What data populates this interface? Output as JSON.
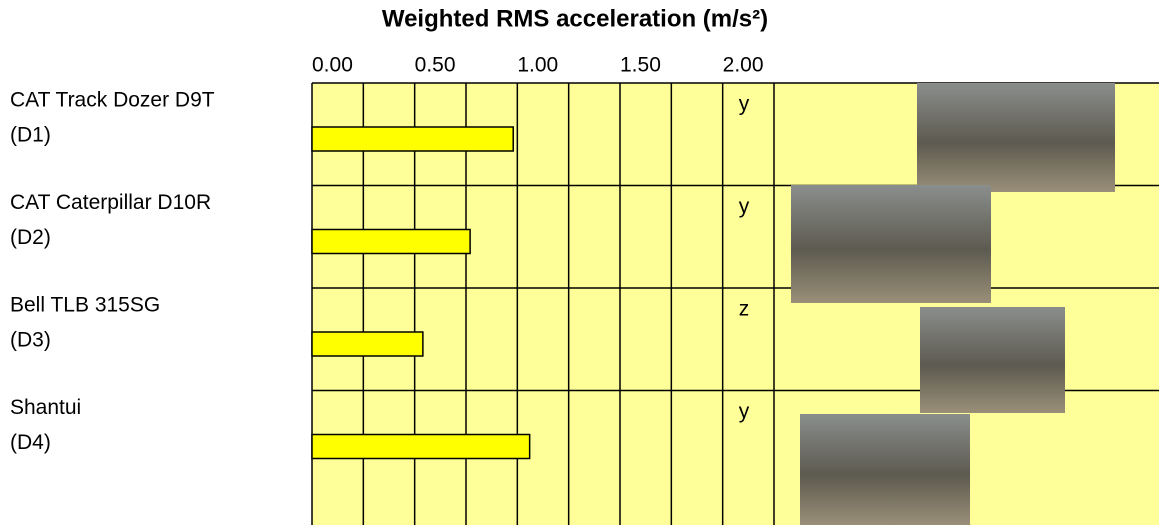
{
  "chart_data": {
    "type": "bar",
    "orientation": "horizontal",
    "title": "Weighted RMS acceleration (m/s²)",
    "categories": [
      [
        "CAT Track Dozer D9T",
        "(D1)"
      ],
      [
        "CAT Caterpillar D10R",
        "(D2)"
      ],
      [
        "Bell TLB 315SG",
        "(D3)"
      ],
      [
        "Shantui",
        "(D4)"
      ]
    ],
    "values": [
      0.98,
      0.77,
      0.54,
      1.06
    ],
    "axis_labels": [
      "y",
      "y",
      "z",
      "y"
    ],
    "color": "#ffff00",
    "background": "#ffff99",
    "xlim": [
      0,
      4.125
    ],
    "xticks": [
      {
        "value": 0,
        "label": "0.00"
      },
      {
        "value": 0.5,
        "label": "0.50"
      },
      {
        "value": 1,
        "label": "1.00"
      },
      {
        "value": 1.5,
        "label": "1.50"
      },
      {
        "value": 2,
        "label": "2.00"
      }
    ],
    "minor_xticks": [
      0.25,
      0.75,
      1.25,
      1.75,
      2.25
    ],
    "grid": true
  }
}
